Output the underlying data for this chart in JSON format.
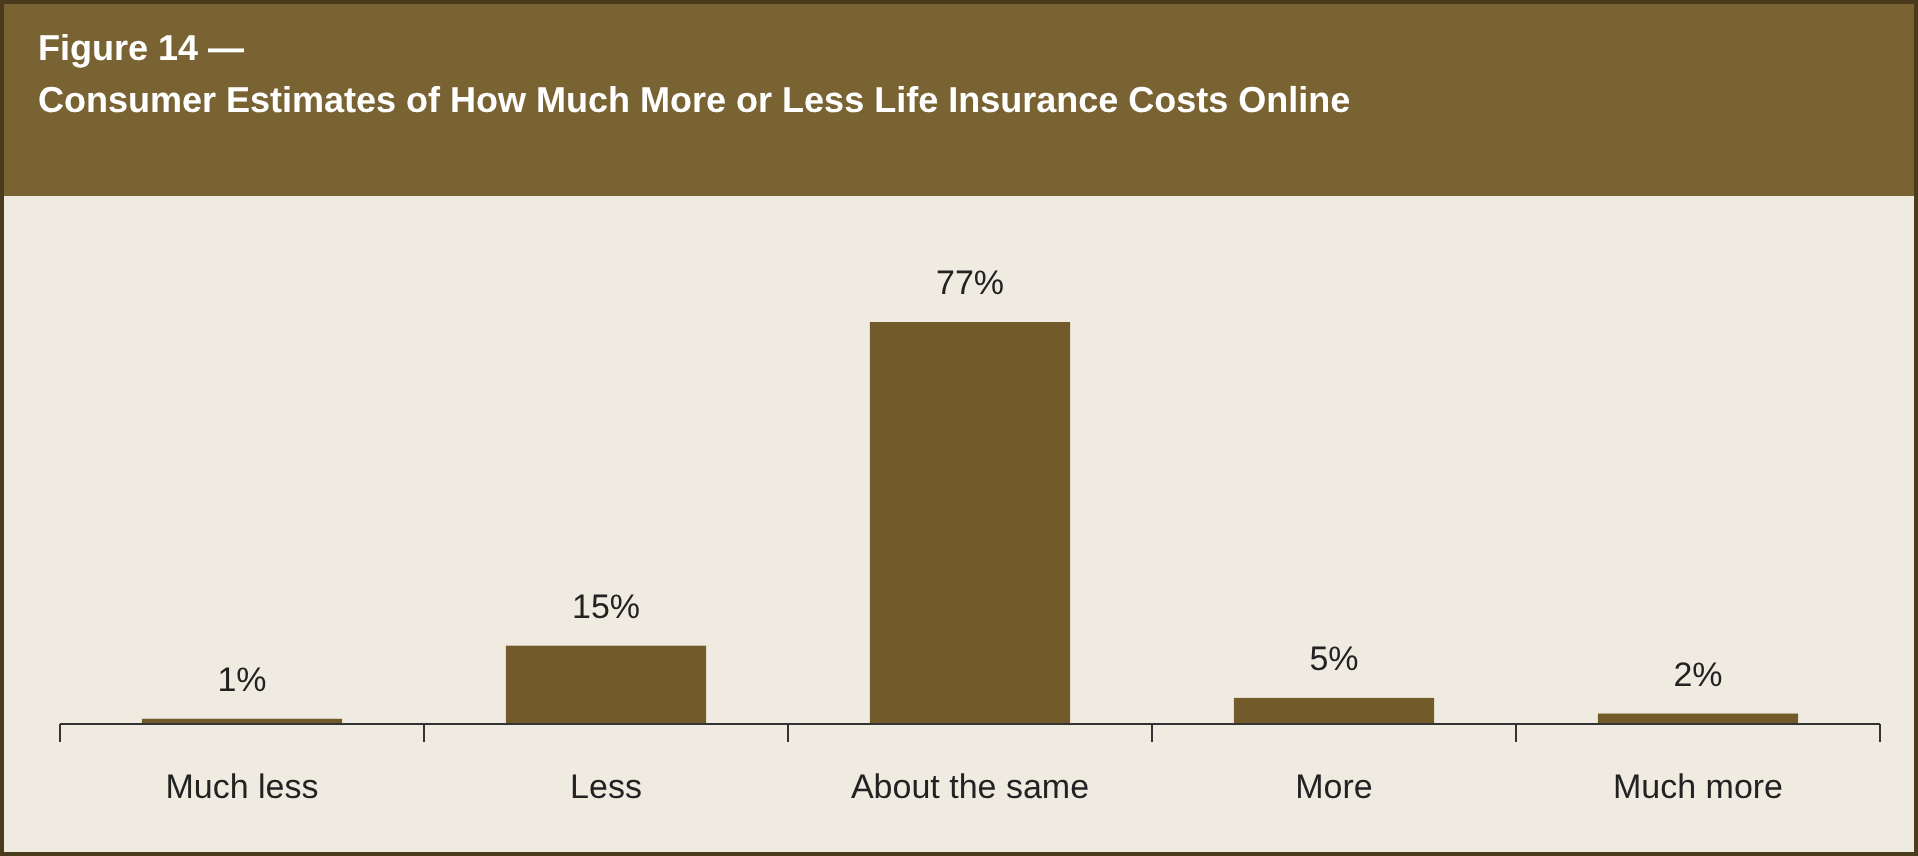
{
  "chart_data": {
    "type": "bar",
    "title": "Figure 14 —",
    "subtitle": "Consumer Estimates of How Much More or Less Life Insurance Costs Online",
    "categories": [
      "Much less",
      "Less",
      "About the same",
      "More",
      "Much more"
    ],
    "values": [
      1,
      15,
      77,
      5,
      2
    ],
    "value_labels": [
      "1%",
      "15%",
      "77%",
      "5%",
      "2%"
    ],
    "color": "#725a2b"
  }
}
